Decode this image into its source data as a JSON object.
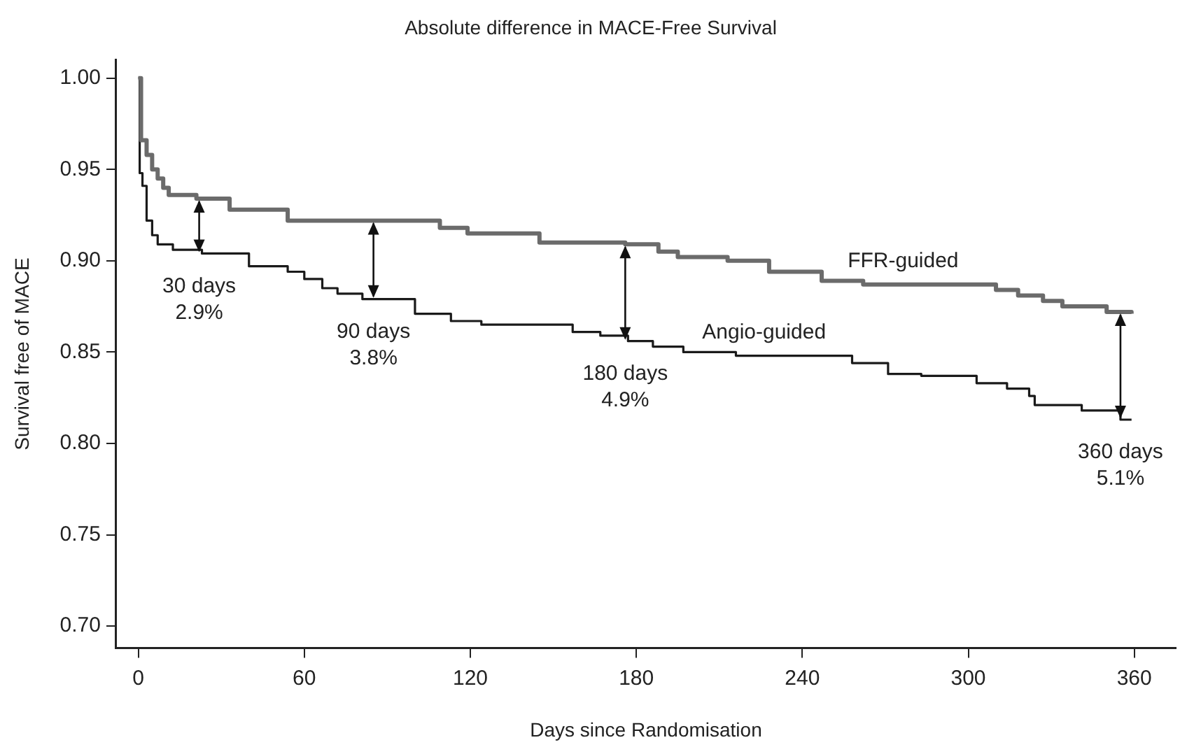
{
  "chart_data": {
    "type": "step",
    "title": "Absolute difference in MACE-Free Survival",
    "xlabel": "Days since Randomisation",
    "ylabel": "Survival free of MACE",
    "xlim": [
      -8,
      375
    ],
    "ylim": [
      0.688,
      1.01
    ],
    "xticks": [
      0,
      60,
      120,
      180,
      240,
      300,
      360
    ],
    "yticks": [
      {
        "value": 0.7,
        "label": "0.70"
      },
      {
        "value": 0.75,
        "label": "0.75"
      },
      {
        "value": 0.8,
        "label": "0.80"
      },
      {
        "value": 0.85,
        "label": "0.85"
      },
      {
        "value": 0.9,
        "label": "0.90"
      },
      {
        "value": 0.95,
        "label": "0.95"
      },
      {
        "value": 1.0,
        "label": "1.00"
      }
    ],
    "grid": false,
    "legend": false,
    "marker": "none",
    "line_style": "solid",
    "series": [
      {
        "name": "FFR-guided",
        "color": "#6b6b6b",
        "x": [
          0,
          1,
          3,
          5,
          7,
          9,
          11,
          21,
          33,
          54,
          109,
          119,
          145,
          176,
          188,
          195,
          213,
          228,
          247,
          262,
          310,
          318,
          327,
          334,
          350,
          359
        ],
        "values": [
          1.0,
          0.966,
          0.958,
          0.95,
          0.945,
          0.94,
          0.936,
          0.934,
          0.928,
          0.922,
          0.918,
          0.915,
          0.91,
          0.909,
          0.905,
          0.902,
          0.9,
          0.894,
          0.889,
          0.887,
          0.884,
          0.881,
          0.878,
          0.875,
          0.872,
          0.871
        ]
      },
      {
        "name": "Angio-guided",
        "color": "#1a1a1a",
        "x": [
          0,
          0.5,
          1.5,
          3,
          5,
          7,
          12.5,
          23,
          40,
          54,
          60,
          66.5,
          72,
          81,
          100,
          113,
          124,
          157,
          167,
          177,
          186,
          197,
          216,
          258,
          271,
          283,
          303,
          314,
          322,
          324,
          341,
          355,
          359
        ],
        "values": [
          1.0,
          0.948,
          0.941,
          0.922,
          0.914,
          0.909,
          0.906,
          0.904,
          0.897,
          0.894,
          0.89,
          0.885,
          0.882,
          0.879,
          0.871,
          0.867,
          0.865,
          0.861,
          0.859,
          0.856,
          0.853,
          0.85,
          0.848,
          0.844,
          0.838,
          0.837,
          0.833,
          0.83,
          0.826,
          0.821,
          0.818,
          0.813,
          0.813
        ]
      }
    ],
    "annotations": [
      {
        "text": "30 days\n2.9%",
        "x": 22,
        "y": 0.904
      },
      {
        "text": "90 days\n3.8%",
        "x": 85,
        "y": 0.879
      },
      {
        "text": "180 days\n4.9%",
        "x": 176,
        "y": 0.856
      },
      {
        "text": "360 days\n5.1%",
        "x": 355,
        "y": 0.813
      }
    ]
  }
}
